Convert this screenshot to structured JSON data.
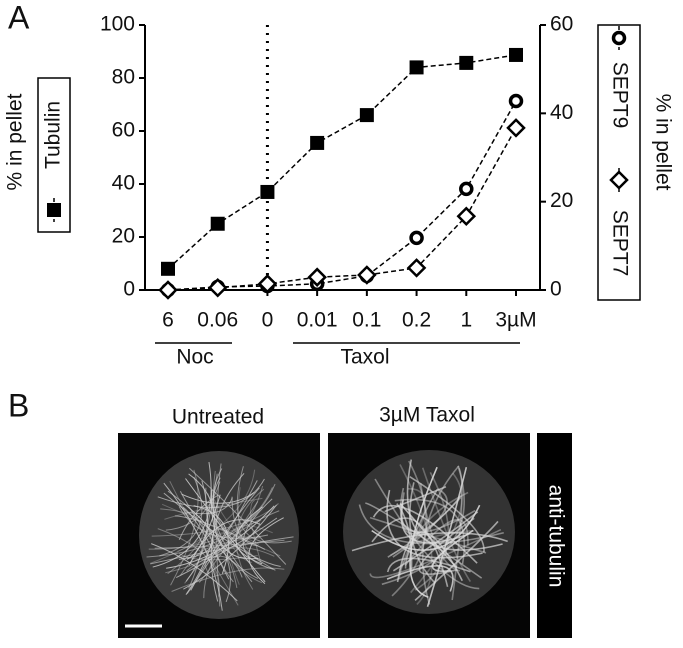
{
  "panels": {
    "a": "A",
    "b": "B"
  },
  "chart_data": {
    "type": "line",
    "y_label": "% in pellet",
    "y2_label": "% in pellet",
    "categories": [
      "6",
      "0.06",
      "0",
      "0.01",
      "0.1",
      "0.2",
      "1",
      "3µM"
    ],
    "groups": [
      "Noc",
      "Taxol"
    ],
    "series": [
      {
        "name": "Tubulin",
        "color": "#000000",
        "marker": "square",
        "values": [
          8,
          25,
          37,
          55.5,
          66,
          84,
          85.7,
          88.7
        ]
      },
      {
        "name": "SEPT9",
        "color": "#000000",
        "marker": "circle",
        "axis": "y2",
        "values": [
          0,
          0.7,
          0.9,
          1.4,
          3.2,
          11.8,
          22.9,
          42.8
        ]
      },
      {
        "name": "SEPT7",
        "color": "#000000",
        "marker": "diamond",
        "axis": "y2",
        "values": [
          0,
          0.5,
          1.4,
          2.9,
          3.4,
          5,
          16.7,
          36.7
        ]
      }
    ],
    "ylim": [
      0,
      100
    ],
    "yticks": [
      0,
      20,
      40,
      60,
      80,
      100
    ],
    "y2lim": [
      0,
      60
    ],
    "y2ticks": [
      0,
      20,
      40,
      60
    ]
  },
  "images": {
    "titles": [
      "Untreated",
      "3µM Taxol"
    ],
    "side_label": "anti-tubulin"
  }
}
